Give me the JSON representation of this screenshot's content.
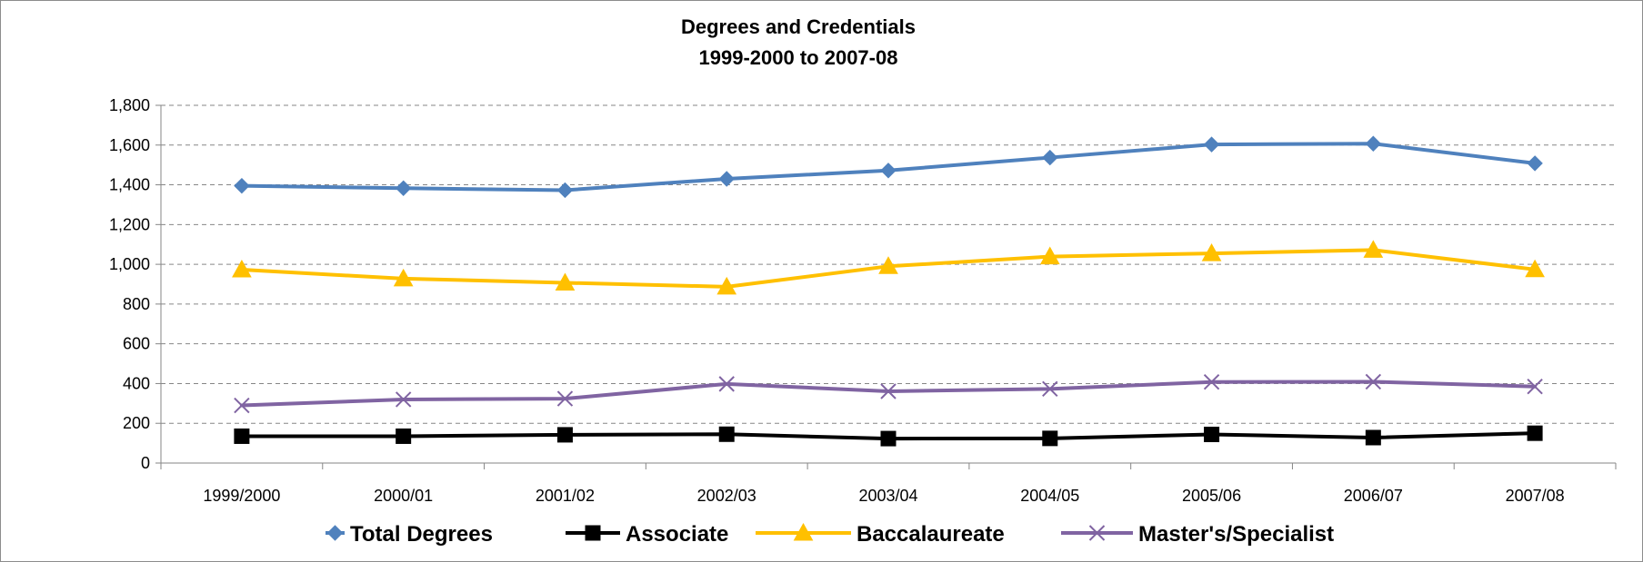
{
  "chart_data": {
    "type": "line",
    "title": [
      "Degrees and Credentials",
      "1999-2000 to 2007-08"
    ],
    "xlabel": "",
    "ylabel": "",
    "categories": [
      "1999/2000",
      "2000/01",
      "2001/02",
      "2002/03",
      "2003/04",
      "2004/05",
      "2005/06",
      "2006/07",
      "2007/08"
    ],
    "ylim": [
      0,
      1800
    ],
    "yticks": [
      0,
      200,
      400,
      600,
      800,
      1000,
      1200,
      1400,
      1600,
      1800
    ],
    "ytick_labels": [
      "0",
      "200",
      "400",
      "600",
      "800",
      "1,000",
      "1,200",
      "1,400",
      "1,600",
      "1,800"
    ],
    "grid": "horizontal dashed",
    "legend_position": "bottom",
    "series": [
      {
        "name": "Total Degrees",
        "color": "#4f81bd",
        "marker": "diamond",
        "values": [
          1395,
          1383,
          1373,
          1430,
          1472,
          1537,
          1603,
          1607,
          1508
        ]
      },
      {
        "name": "Associate",
        "color": "#000000",
        "marker": "square",
        "values": [
          135,
          135,
          142,
          145,
          123,
          124,
          144,
          128,
          150
        ]
      },
      {
        "name": "Baccalaureate",
        "color": "#ffc000",
        "marker": "triangle",
        "values": [
          973,
          928,
          907,
          887,
          990,
          1039,
          1055,
          1072,
          974
        ]
      },
      {
        "name": "Master's/Specialist",
        "color": "#8064a2",
        "marker": "x",
        "values": [
          290,
          320,
          324,
          398,
          361,
          373,
          408,
          409,
          385
        ]
      }
    ]
  }
}
